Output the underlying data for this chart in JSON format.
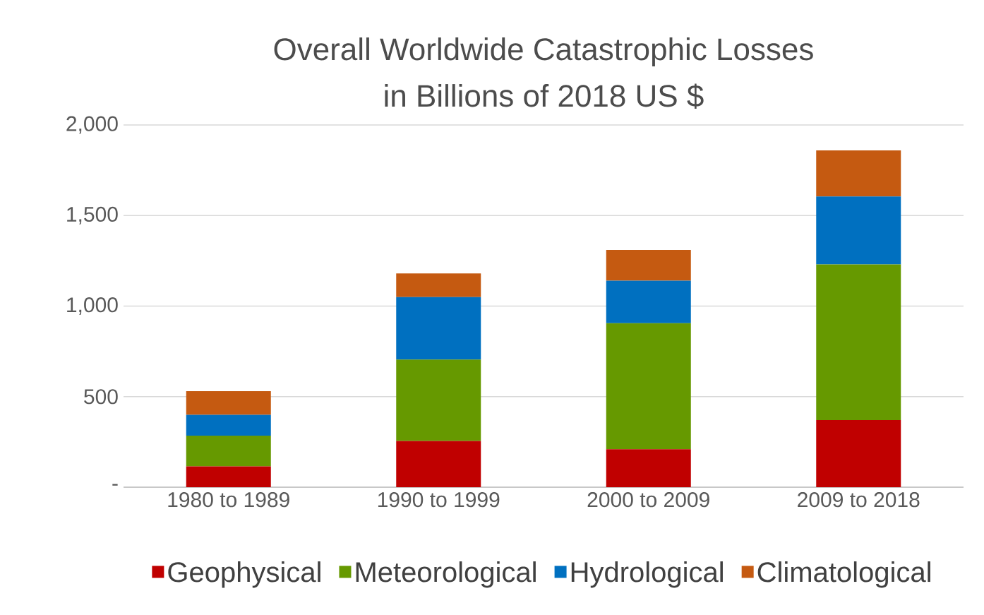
{
  "chart_data": {
    "type": "bar",
    "title": "Overall Worldwide Catastrophic Losses",
    "subtitle": "in Billions of 2018 US $",
    "categories": [
      "1980 to 1989",
      "1990 to 1999",
      "2000 to 2009",
      "2009 to 2018"
    ],
    "stacked": true,
    "series": [
      {
        "name": "Geophysical",
        "color": "#c00000",
        "values": [
          115,
          255,
          210,
          370
        ]
      },
      {
        "name": "Meteorological",
        "color": "#669900",
        "values": [
          170,
          450,
          695,
          860
        ]
      },
      {
        "name": "Hydrological",
        "color": "#0070c0",
        "values": [
          115,
          345,
          235,
          375
        ]
      },
      {
        "name": "Climatological",
        "color": "#c55a11",
        "values": [
          130,
          130,
          170,
          255
        ]
      }
    ],
    "ylim": [
      0,
      2000
    ],
    "yticks": [
      {
        "value": 0,
        "label": "-"
      },
      500,
      {
        "value": 1000,
        "label": "1,000"
      },
      {
        "value": 1500,
        "label": "1,500"
      },
      {
        "value": 2000,
        "label": "2,000"
      }
    ],
    "grid": "y",
    "legend": "bottom"
  }
}
